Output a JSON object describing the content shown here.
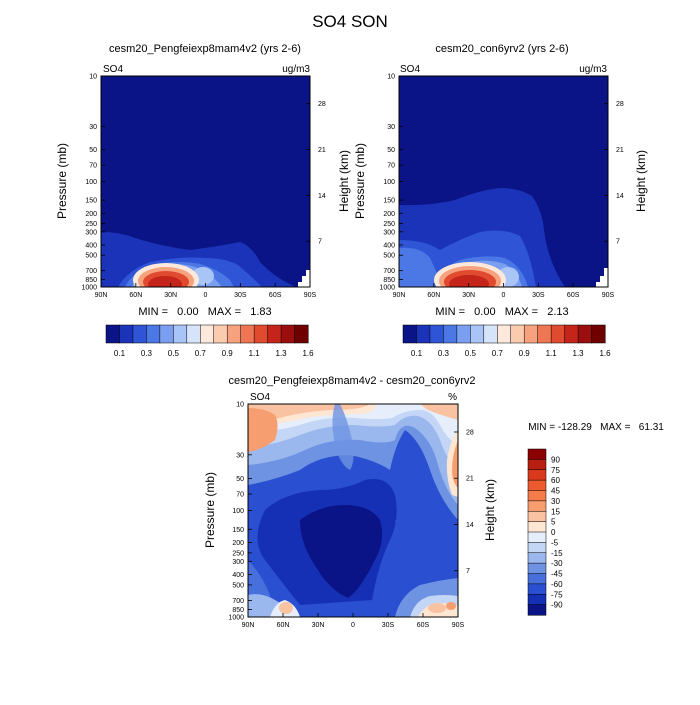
{
  "figure_title": "SO4 SON",
  "colors": {
    "bg_blue": "#0a1486",
    "contour_edge": "#2a3aa8"
  },
  "chart_data": [
    {
      "type": "heatmap",
      "title": "cesm20_Pengfeiexp8mam4v2 (yrs 2-6)",
      "left_label": "SO4",
      "right_label": "ug/m3",
      "xlabel": "",
      "ylabel": "Pressure (mb)",
      "ylabel_right": "Height (km)",
      "x_ticks": [
        "90N",
        "60N",
        "30N",
        "0",
        "30S",
        "60S",
        "90S"
      ],
      "x_range": [
        90,
        -90
      ],
      "y_ticks": [
        10,
        30,
        50,
        70,
        100,
        150,
        200,
        250,
        300,
        400,
        500,
        700,
        850,
        1000
      ],
      "y_range": [
        10,
        1000
      ],
      "y_right_ticks": [
        28,
        21,
        14,
        7
      ],
      "stats": "MIN =   0.00   MAX =   1.83",
      "colorbar_labels": [
        "0.1",
        "0.3",
        "0.5",
        "0.7",
        "0.9",
        "1.1",
        "1.3",
        "1.6"
      ],
      "colorbar_colors": [
        "#0a1486",
        "#1a33b8",
        "#2f55d6",
        "#4c78e6",
        "#7a9ff0",
        "#a9c4f7",
        "#d6e4fa",
        "#fde9dc",
        "#fbcbb0",
        "#f6a27f",
        "#ef7652",
        "#e04a2e",
        "#c4241a",
        "#9a0e0e",
        "#6e0000"
      ],
      "hotspot": {
        "lat": 25,
        "pressure": 900,
        "max": 1.83
      }
    },
    {
      "type": "heatmap",
      "title": "cesm20_con6yrv2 (yrs 2-6)",
      "left_label": "SO4",
      "right_label": "ug/m3",
      "xlabel": "",
      "ylabel": "Pressure (mb)",
      "ylabel_right": "Height (km)",
      "x_ticks": [
        "90N",
        "60N",
        "30N",
        "0",
        "30S",
        "60S",
        "90S"
      ],
      "x_range": [
        90,
        -90
      ],
      "y_ticks": [
        10,
        30,
        50,
        70,
        100,
        150,
        200,
        250,
        300,
        400,
        500,
        700,
        850,
        1000
      ],
      "y_range": [
        10,
        1000
      ],
      "y_right_ticks": [
        28,
        21,
        14,
        7
      ],
      "stats": "MIN =   0.00   MAX =   2.13",
      "colorbar_labels": [
        "0.1",
        "0.3",
        "0.5",
        "0.7",
        "0.9",
        "1.1",
        "1.3",
        "1.6"
      ],
      "colorbar_colors": [
        "#0a1486",
        "#1a33b8",
        "#2f55d6",
        "#4c78e6",
        "#7a9ff0",
        "#a9c4f7",
        "#d6e4fa",
        "#fde9dc",
        "#fbcbb0",
        "#f6a27f",
        "#ef7652",
        "#e04a2e",
        "#c4241a",
        "#9a0e0e",
        "#6e0000"
      ],
      "hotspot": {
        "lat": 25,
        "pressure": 880,
        "max": 2.13
      }
    },
    {
      "type": "heatmap",
      "title": "cesm20_Pengfeiexp8mam4v2 - cesm20_con6yrv2",
      "left_label": "SO4",
      "right_label": "%",
      "xlabel": "",
      "ylabel": "Pressure (mb)",
      "ylabel_right": "Height (km)",
      "x_ticks": [
        "90N",
        "60N",
        "30N",
        "0",
        "30S",
        "60S",
        "90S"
      ],
      "x_range": [
        90,
        -90
      ],
      "y_ticks": [
        10,
        30,
        50,
        70,
        100,
        150,
        200,
        250,
        300,
        400,
        500,
        700,
        850,
        1000
      ],
      "y_range": [
        10,
        1000
      ],
      "y_right_ticks": [
        28,
        21,
        14,
        7
      ],
      "stats": "MIN = -128.29   MAX =   61.31",
      "colorbar_labels": [
        "90",
        "75",
        "60",
        "45",
        "30",
        "15",
        "5",
        "0",
        "-5",
        "-15",
        "-30",
        "-45",
        "-60",
        "-75",
        "-90"
      ],
      "colorbar_colors": [
        "#8b0000",
        "#b81f10",
        "#d93a1c",
        "#ec5a2e",
        "#f47b4a",
        "#f79e70",
        "#f9c2a0",
        "#fde6d2",
        "#e6eefb",
        "#c4d6f6",
        "#9ab7ee",
        "#6f93e3",
        "#4870dc",
        "#2a4fd0",
        "#1530b5",
        "#0a1486"
      ]
    }
  ]
}
